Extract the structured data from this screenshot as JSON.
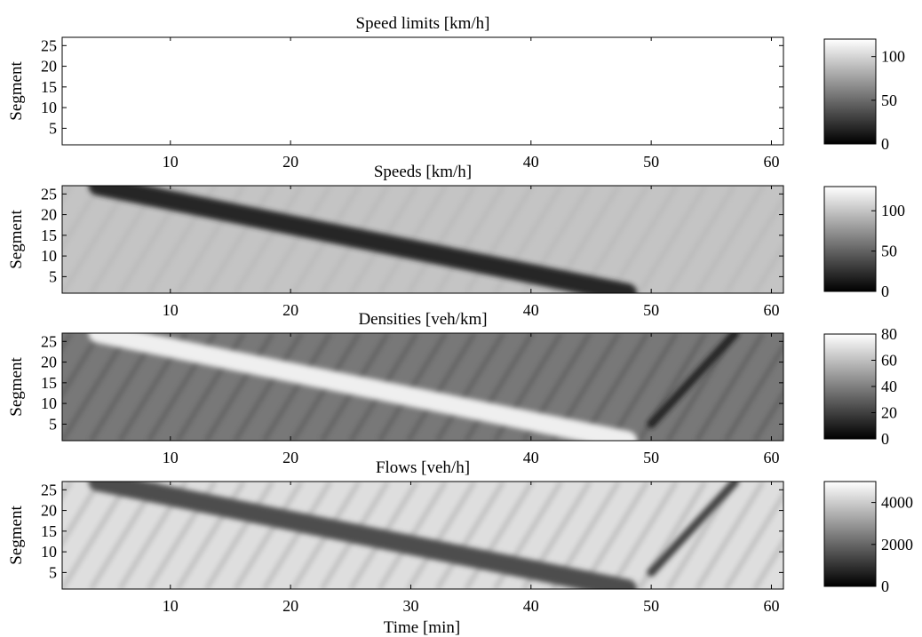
{
  "figure": {
    "xlabel": "Time [min]"
  },
  "chart_data": [
    {
      "type": "heatmap",
      "title": "Speed limits [km/h]",
      "xlabel": "",
      "ylabel": "Segment",
      "xlim": [
        1,
        61
      ],
      "ylim": [
        1,
        27
      ],
      "xticks": [
        "10",
        "20",
        "40",
        "50",
        "60"
      ],
      "yticks": [
        "5",
        "10",
        "15",
        "20",
        "25"
      ],
      "colormap": "gray",
      "colorbar": {
        "min": 0,
        "max": 120,
        "ticks": [
          "0",
          "50",
          "100"
        ]
      },
      "values": "uniform 120 (blank / no speed limits active)"
    },
    {
      "type": "heatmap",
      "title": "Speeds [km/h]",
      "xlabel": "",
      "ylabel": "Segment",
      "xlim": [
        1,
        61
      ],
      "ylim": [
        1,
        27
      ],
      "xticks": [
        "10",
        "20",
        "40",
        "50",
        "60"
      ],
      "yticks": [
        "5",
        "10",
        "15",
        "20",
        "25"
      ],
      "colormap": "gray",
      "colorbar": {
        "min": 0,
        "max": 130,
        "ticks": [
          "0",
          "50",
          "100"
        ]
      },
      "features": [
        {
          "kind": "congestion-band",
          "level": 20,
          "start": {
            "x": 4,
            "y": 27
          },
          "end": {
            "x": 48,
            "y": 1
          }
        }
      ]
    },
    {
      "type": "heatmap",
      "title": "Densities [veh/km]",
      "xlabel": "",
      "ylabel": "Segment",
      "xlim": [
        1,
        61
      ],
      "ylim": [
        1,
        27
      ],
      "xticks": [
        "10",
        "20",
        "40",
        "50",
        "60"
      ],
      "yticks": [
        "5",
        "10",
        "15",
        "20",
        "25"
      ],
      "colormap": "gray",
      "colorbar": {
        "min": 0,
        "max": 80,
        "ticks": [
          "0",
          "20",
          "40",
          "60",
          "80"
        ]
      },
      "features": [
        {
          "kind": "jam-band",
          "level": 75,
          "start": {
            "x": 4,
            "y": 27
          },
          "end": {
            "x": 48,
            "y": 1
          }
        },
        {
          "kind": "wave",
          "level": 10,
          "start": {
            "x": 50,
            "y": 5
          },
          "end": {
            "x": 57,
            "y": 27
          }
        }
      ]
    },
    {
      "type": "heatmap",
      "title": "Flows [veh/h]",
      "xlabel": "Time [min]",
      "ylabel": "Segment",
      "xlim": [
        1,
        61
      ],
      "ylim": [
        1,
        27
      ],
      "xticks": [
        "10",
        "20",
        "30",
        "40",
        "50",
        "60"
      ],
      "yticks": [
        "5",
        "10",
        "15",
        "20",
        "25"
      ],
      "colormap": "gray",
      "colorbar": {
        "min": 0,
        "max": 5000,
        "ticks": [
          "0",
          "2000",
          "4000"
        ]
      },
      "features": [
        {
          "kind": "low-flow-band",
          "level": 1500,
          "start": {
            "x": 4,
            "y": 27
          },
          "end": {
            "x": 48,
            "y": 1
          }
        },
        {
          "kind": "wave",
          "level": 1200,
          "start": {
            "x": 50,
            "y": 5
          },
          "end": {
            "x": 57,
            "y": 27
          }
        }
      ]
    }
  ]
}
